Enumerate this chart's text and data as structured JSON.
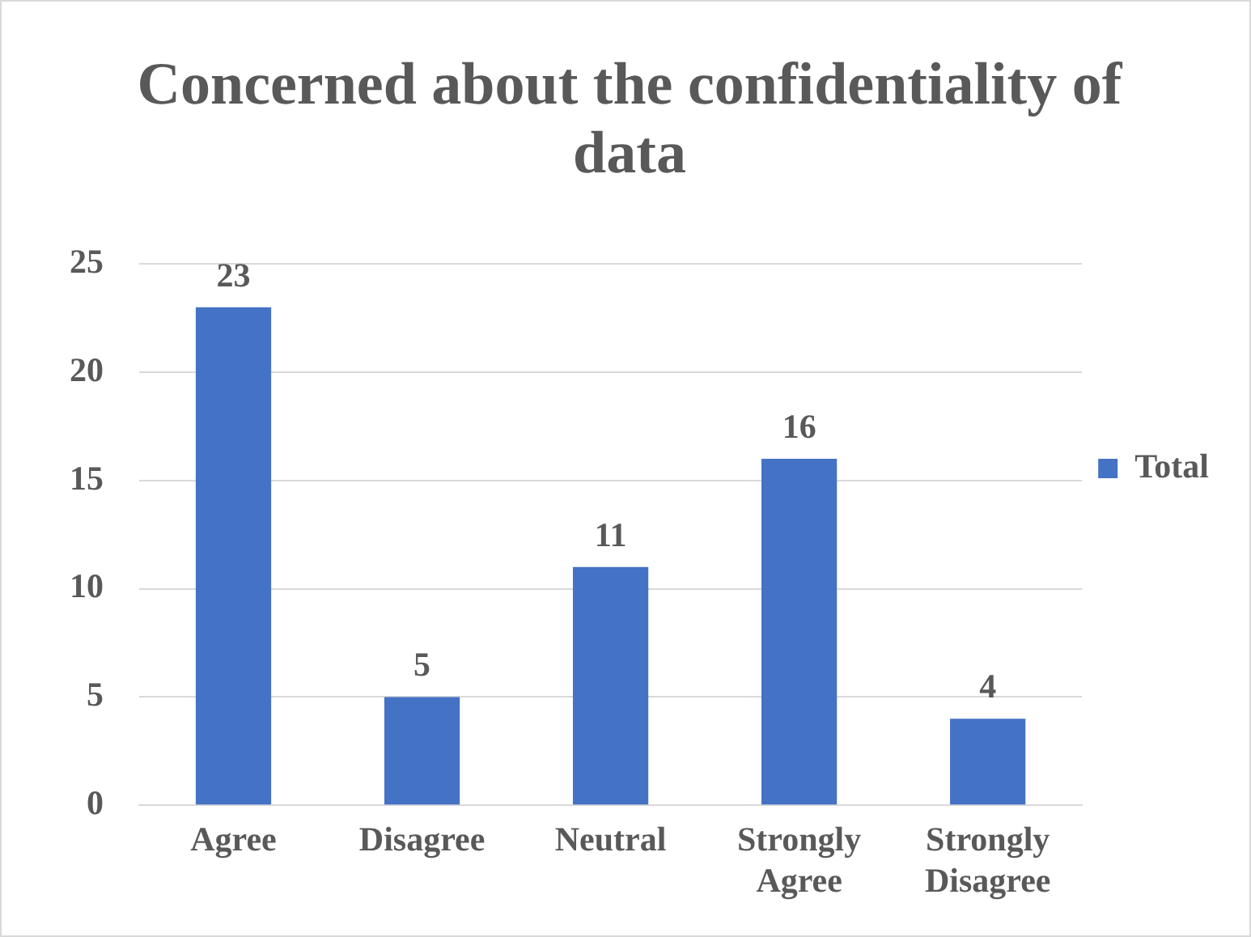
{
  "chart_data": {
    "type": "bar",
    "title": "Concerned about the confidentiality of data",
    "categories": [
      "Agree",
      "Disagree",
      "Neutral",
      "Strongly Agree",
      "Strongly Disagree"
    ],
    "series": [
      {
        "name": "Total",
        "color": "#4472c4",
        "values": [
          23,
          5,
          11,
          16,
          4
        ]
      }
    ],
    "ylim": [
      0,
      25
    ],
    "yticks": [
      0,
      5,
      10,
      15,
      20,
      25
    ],
    "grid": "y",
    "legend": "right",
    "data_labels": true
  }
}
